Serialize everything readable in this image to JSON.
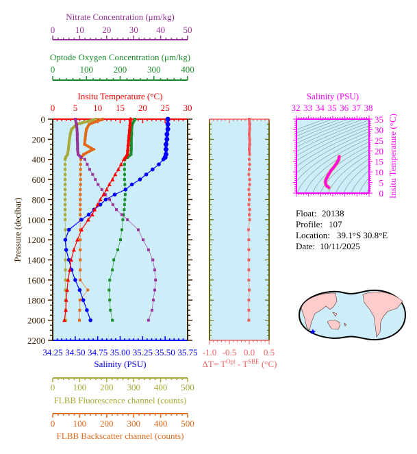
{
  "colors": {
    "nitrate": "#993399",
    "oxygen": "#1a8c2a",
    "temperature": "#ff0000",
    "salinity": "#0000ff",
    "fluorescence": "#a8a838",
    "backscatter": "#e0691a",
    "delta_t": "#f06060",
    "ts": "#ff00ff",
    "plot_bg": "#cdeef8",
    "pressure_axis": "#3a1f00",
    "delta_axis": "#666600"
  },
  "chart_data": [
    {
      "type": "line",
      "title": "",
      "ylabel": "Pressure (decibar)",
      "ylim": [
        2200,
        0
      ],
      "y_ticks": [
        "0",
        "200",
        "400",
        "600",
        "800",
        "1000",
        "1200",
        "1400",
        "1600",
        "1800",
        "2000",
        "2200"
      ],
      "pressure": [
        0,
        50,
        100,
        150,
        200,
        250,
        300,
        350,
        380,
        400,
        450,
        500,
        550,
        600,
        650,
        700,
        750,
        800,
        850,
        900,
        950,
        1000,
        1100,
        1200,
        1300,
        1400,
        1500,
        1600,
        1700,
        1800,
        1900,
        2000
      ],
      "axes": {
        "nitrate": {
          "label": "Nitrate Concentration (μm/kg)",
          "range": [
            0,
            50
          ],
          "ticks": [
            "0",
            "10",
            "20",
            "30",
            "40",
            "50"
          ]
        },
        "oxygen": {
          "label": "Optode Oxygen Concentration (μm/kg)",
          "range": [
            0,
            400
          ],
          "ticks": [
            "0",
            "100",
            "200",
            "300",
            "400"
          ]
        },
        "temperature": {
          "label": "Insitu Temperature (°C)",
          "range": [
            0,
            30
          ],
          "ticks": [
            "0",
            "5",
            "10",
            "15",
            "20",
            "25",
            "30"
          ]
        },
        "salinity": {
          "label": "Salinity (PSU)",
          "range": [
            34.25,
            35.75
          ],
          "ticks": [
            "34.25",
            "34.50",
            "34.75",
            "35.00",
            "35.25",
            "35.50",
            "35.75"
          ]
        },
        "fluorescence": {
          "label": "FLBB Fluorescence channel (counts)",
          "range": [
            0,
            500
          ],
          "ticks": [
            "0",
            "100",
            "200",
            "300",
            "400",
            "500"
          ]
        },
        "backscatter": {
          "label": "FLBB Backscatter channel (counts)",
          "range": [
            0,
            500
          ],
          "ticks": [
            "0",
            "100",
            "200",
            "300",
            "400",
            "500"
          ]
        }
      },
      "series": [
        {
          "key": "temperature",
          "marker": "triangle",
          "values": [
            17.3,
            17.2,
            17.1,
            17.0,
            16.9,
            16.8,
            16.7,
            16.6,
            16.2,
            15.8,
            15.2,
            14.6,
            13.9,
            13.3,
            12.6,
            12.0,
            11.3,
            10.6,
            10.0,
            9.3,
            8.8,
            7.9,
            6.4,
            5.5,
            4.7,
            4.1,
            3.8,
            3.4,
            3.2,
            3.0,
            2.9,
            2.6
          ]
        },
        {
          "key": "salinity",
          "marker": "circle",
          "values": [
            35.53,
            35.53,
            35.53,
            35.52,
            35.52,
            35.51,
            35.51,
            35.51,
            35.5,
            35.48,
            35.43,
            35.36,
            35.29,
            35.22,
            35.13,
            35.06,
            34.94,
            34.84,
            34.78,
            34.71,
            34.65,
            34.57,
            34.43,
            34.39,
            34.4,
            34.43,
            34.46,
            34.5,
            34.55,
            34.59,
            34.63,
            34.67
          ]
        },
        {
          "key": "oxygen",
          "marker": "square",
          "values": [
            244,
            236,
            234,
            234,
            233,
            233,
            233,
            232,
            222,
            214,
            213,
            213,
            213,
            213,
            214,
            215,
            215,
            214,
            213,
            212,
            210,
            208,
            205,
            201,
            193,
            181,
            177,
            169,
            167,
            169,
            171,
            177
          ]
        },
        {
          "key": "nitrate",
          "marker": "square",
          "values": [
            8.4,
            8.8,
            9.0,
            9.1,
            9.1,
            9.2,
            9.2,
            9.4,
            10.5,
            11.9,
            12.8,
            13.7,
            14.8,
            15.8,
            16.8,
            18.2,
            19.5,
            21.1,
            22.3,
            23.6,
            25.6,
            27.7,
            31.7,
            33.5,
            35.5,
            37.1,
            37.8,
            38.1,
            37.8,
            37.3,
            36.8,
            35.5
          ]
        },
        {
          "key": "fluorescence",
          "marker": "square",
          "values": [
            160,
            90,
            70,
            65,
            62,
            60,
            58,
            55,
            48,
            46,
            46,
            46,
            46,
            46,
            46,
            46,
            46,
            46,
            46,
            46,
            46,
            46,
            47,
            47,
            47,
            47,
            47,
            47,
            47,
            47,
            48,
            48
          ]
        },
        {
          "key": "backscatter",
          "marker": "square",
          "values": [
            185,
            135,
            125,
            122,
            120,
            118,
            150,
            115,
            106,
            104,
            103,
            103,
            103,
            103,
            103,
            102,
            102,
            102,
            102,
            102,
            102,
            102,
            102,
            102,
            102,
            102,
            102,
            102,
            130,
            101,
            100,
            99
          ]
        }
      ]
    },
    {
      "type": "scatter",
      "xlabel_parts": [
        "ΔT= T",
        "Opt",
        " - T",
        "SBE",
        " (°C)"
      ],
      "xlim": [
        -1.0,
        0.5
      ],
      "x_ticks": [
        "-1.0",
        "-0.5",
        "0.0",
        "0.5"
      ],
      "ylim": [
        2200,
        0
      ],
      "pressure": [
        0,
        50,
        100,
        150,
        200,
        250,
        300,
        350,
        400,
        450,
        500,
        550,
        600,
        650,
        700,
        750,
        800,
        850,
        900,
        950,
        1000,
        1100,
        1200,
        1300,
        1400,
        1500,
        1600,
        1700,
        1800,
        1900,
        2000
      ],
      "values": [
        0.0,
        0.01,
        0.01,
        0.0,
        0.01,
        0.01,
        0.0,
        0.01,
        0.0,
        0.01,
        0.0,
        -0.01,
        0.01,
        0.01,
        -0.01,
        0.0,
        0.0,
        -0.01,
        0.01,
        0.0,
        0.01,
        -0.02,
        -0.01,
        -0.01,
        -0.01,
        -0.01,
        -0.01,
        0.0,
        -0.01,
        -0.01,
        -0.01
      ]
    },
    {
      "type": "line",
      "title": "Salinity (PSU)",
      "xlabel": "Salinity (PSU)",
      "ylabel": "Insitu Temperature (°C)",
      "xlim": [
        32,
        38
      ],
      "ylim": [
        0,
        35
      ],
      "x_ticks": [
        "32",
        "33",
        "34",
        "35",
        "36",
        "37",
        "38"
      ],
      "y_ticks": [
        "0",
        "5",
        "10",
        "15",
        "20",
        "25",
        "30",
        "35"
      ],
      "isopycnals": true
    }
  ],
  "info": {
    "float_label": "Float:",
    "float": "20138",
    "profile_label": "Profile:",
    "profile": "107",
    "location_label": "Location:",
    "location": "39.1°S  30.8°E",
    "date_label": "Date:",
    "date": "10/11/2025"
  },
  "map": {
    "marker_icon": "star-icon",
    "marker_color": "#0000ff",
    "land_color": "#ffcccc",
    "ocean_color": "#cdeef8"
  }
}
